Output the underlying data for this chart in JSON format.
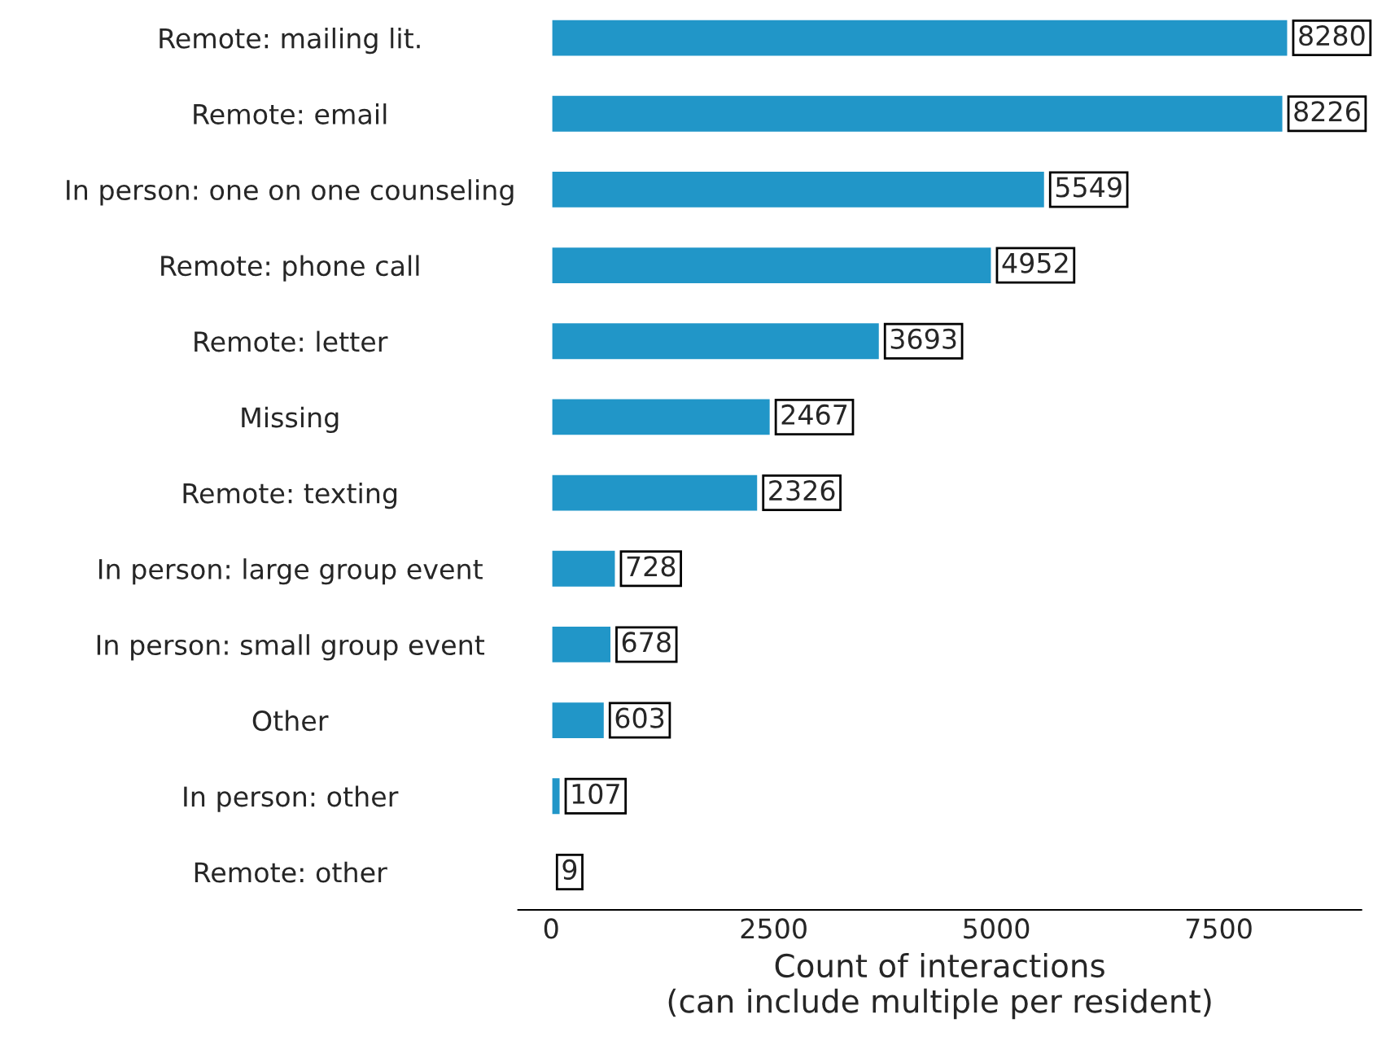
{
  "chart_data": {
    "type": "bar",
    "orientation": "horizontal",
    "xlabel": "Count of interactions\n(can include multiple per resident)",
    "categories": [
      "Remote: mailing lit.",
      "Remote: email",
      "In person: one on one counseling",
      "Remote: phone call",
      "Remote: letter",
      "Missing",
      "Remote: texting",
      "In person: large group event",
      "In person: small group event",
      "Other",
      "In person: other",
      "Remote: other"
    ],
    "values": [
      8280,
      8226,
      5549,
      4952,
      3693,
      2467,
      2326,
      728,
      678,
      603,
      107,
      9
    ],
    "color": "#2196c8",
    "data_labels": true,
    "xlim": [
      -370,
      9100
    ],
    "xticks": [
      0,
      2500,
      5000,
      7500
    ],
    "grid": false,
    "legend": false
  }
}
